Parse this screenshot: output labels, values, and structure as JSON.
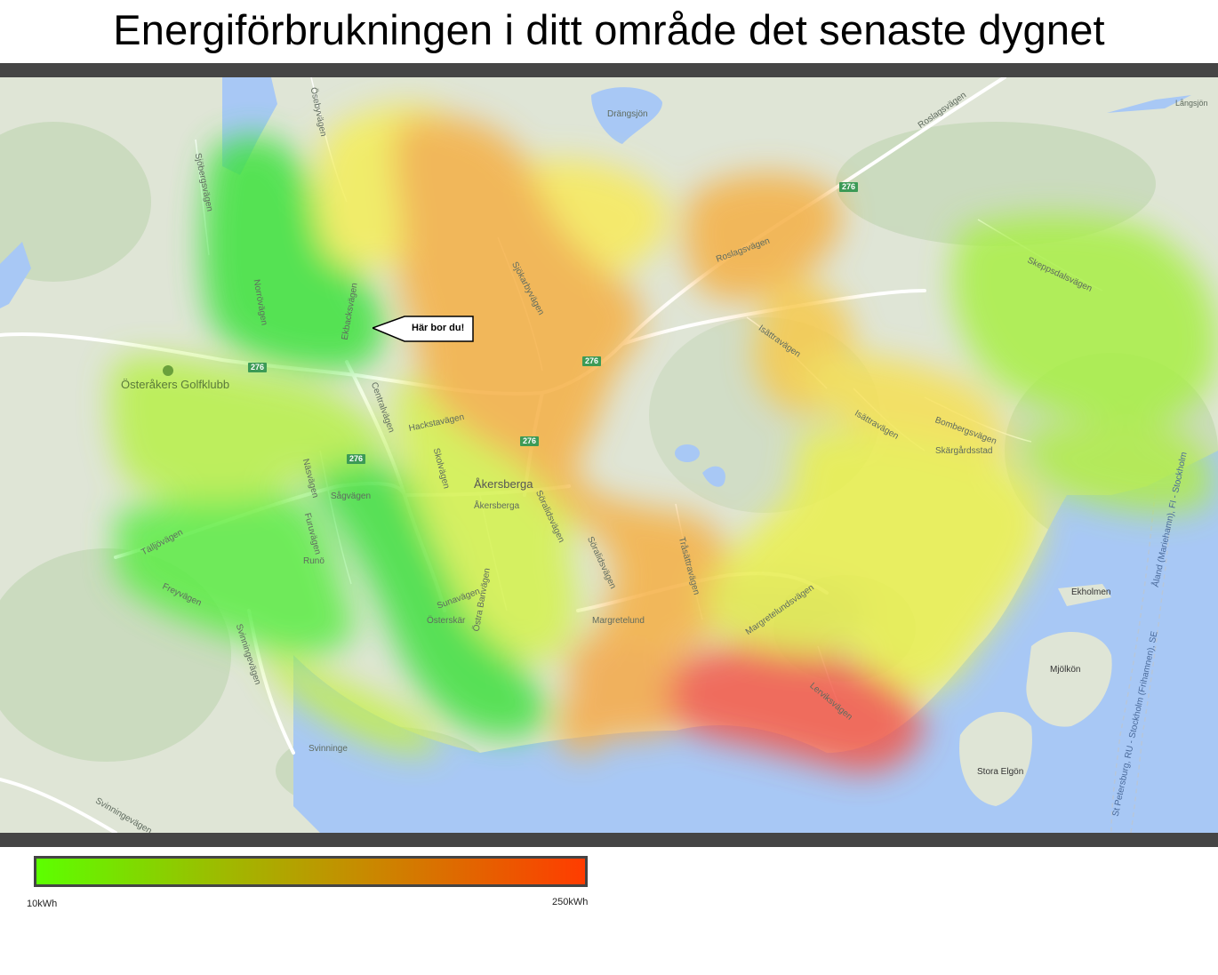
{
  "title": "Energiförbrukningen i ditt område det senaste dygnet",
  "callout": {
    "text": "Här bor du!"
  },
  "legend": {
    "min_label": "10kWh",
    "max_label": "250kWh",
    "colors": {
      "low": "#5cff00",
      "high": "#ff3c00"
    }
  },
  "map": {
    "places": [
      "Drängsjön",
      "Österåkers Golfklubb",
      "Åkersberga",
      "Runö",
      "Österskär",
      "Margretelund",
      "Skärgårdsstad",
      "Ekholmen",
      "Mjölkön",
      "Stora Elgön",
      "Svinninge",
      "Långsjön"
    ],
    "roads": [
      "Sjöbergsvägen",
      "Ösebyvägen",
      "Roslagsvägen",
      "Norrövägen",
      "Ekbacksvägen",
      "Sjökarbyvägen",
      "Isättravägen",
      "Skeppsdalsvägen",
      "Centralvägen",
      "Hackstavägen",
      "Skolvägen",
      "Näsvägen",
      "Sågvägen",
      "Söralidsvägen",
      "Tråsättravägen",
      "Bombergsvägen",
      "Tälljövägen",
      "Furuvägen",
      "Freyvägen",
      "Svinningevägen",
      "Margretelundsvägen",
      "Lerviksvägen",
      "Sunavägen",
      "Östra Banvägen",
      "Åland (Mariehamn), FI - Stockholm",
      "St Petersburg, RU - Stockholm (Frihamnen), SE"
    ],
    "route_shields": [
      "276",
      "276",
      "276",
      "276",
      "276",
      "276"
    ]
  }
}
